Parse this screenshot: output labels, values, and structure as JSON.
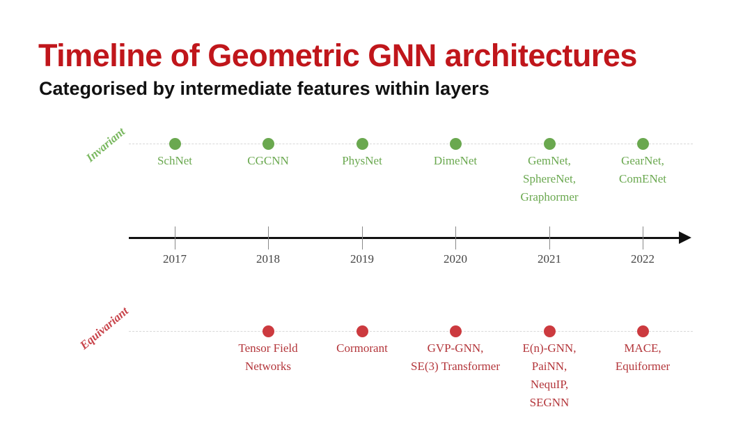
{
  "title": "Timeline of Geometric GNN architectures",
  "subtitle": "Categorised by intermediate features within layers",
  "colors": {
    "title": "#c0161b",
    "invariant": "#6aa84f",
    "equivariant": "#cc3a3f",
    "axis": "#111111"
  },
  "years": [
    "2017",
    "2018",
    "2019",
    "2020",
    "2021",
    "2022"
  ],
  "invariant": {
    "label": "Invariant",
    "items": [
      "SchNet",
      "CGCNN",
      "PhysNet",
      "DimeNet",
      "GemNet,\nSphereNet,\nGraphormer",
      "GearNet,\nComENet"
    ]
  },
  "equivariant": {
    "label": "Equivariant",
    "items": [
      "Tensor Field\nNetworks",
      "Cormorant",
      "GVP-GNN,\nSE(3) Transformer",
      "E(n)-GNN,\nPaiNN,\nNequIP,\nSEGNN",
      "MACE,\nEquiformer"
    ]
  }
}
